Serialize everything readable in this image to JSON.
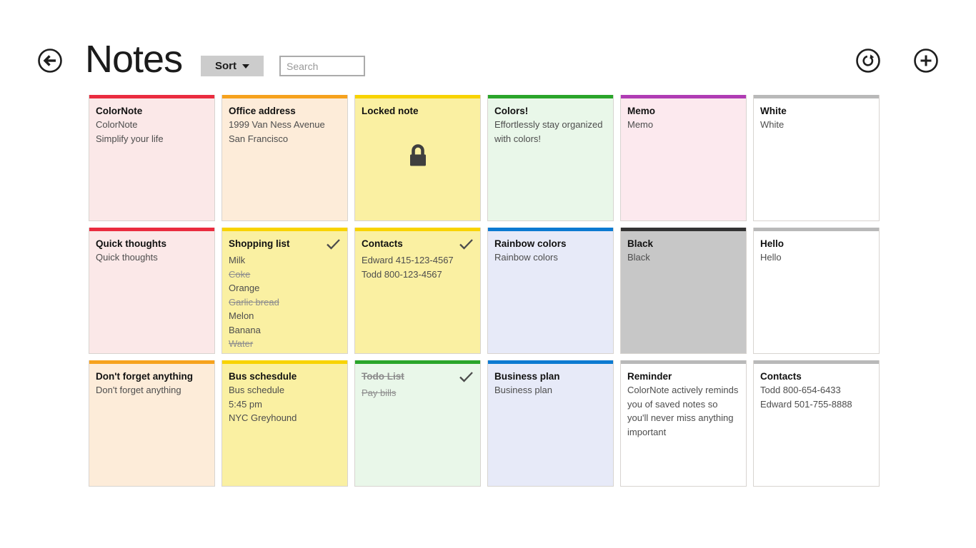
{
  "header": {
    "title": "Notes",
    "back_label": "Back",
    "sort_label": "Sort",
    "search_placeholder": "Search",
    "refresh_label": "Refresh",
    "add_label": "Add note"
  },
  "colors": {
    "bar_red": "#ea2c3f",
    "bar_orange": "#f6a21d",
    "bar_gold": "#f8d301",
    "bar_green": "#2aa52a",
    "bar_purple": "#b03cb4",
    "bar_blue": "#0c7ad1",
    "bar_gray": "#b9b9b9",
    "bar_black": "#333333",
    "icon_stroke": "#1e1e1e",
    "lock_fill": "#3f3f3f",
    "check_stroke": "#4c4c4c"
  },
  "notes": [
    {
      "title": "ColorNote",
      "bar": "#ea2c3f",
      "bg": "#fbe8e8",
      "lines": [
        {
          "text": "ColorNote"
        },
        {
          "text": "Simplify your life"
        }
      ]
    },
    {
      "title": "Office address",
      "bar": "#f6a21d",
      "bg": "#fdecd9",
      "lines": [
        {
          "text": "1999 Van Ness Avenue"
        },
        {
          "text": "San Francisco"
        }
      ]
    },
    {
      "title": "Locked note",
      "bar": "#f8d301",
      "bg": "#faf0a2",
      "lock": true,
      "lines": []
    },
    {
      "title": "Colors!",
      "bar": "#2aa52a",
      "bg": "#e9f7e9",
      "lines": [
        {
          "text": "Effortlessly stay organized with colors!"
        }
      ]
    },
    {
      "title": "Memo",
      "bar": "#b03cb4",
      "bg": "#fce9ee",
      "lines": [
        {
          "text": "Memo"
        }
      ]
    },
    {
      "title": "White",
      "bar": "#b9b9b9",
      "bg": "#ffffff",
      "lines": [
        {
          "text": "White"
        }
      ]
    },
    {
      "title": "Quick thoughts",
      "bar": "#ea2c3f",
      "bg": "#fbe8e8",
      "lines": [
        {
          "text": "Quick thoughts"
        }
      ]
    },
    {
      "title": "Shopping list",
      "bar": "#f8d301",
      "bg": "#faf0a2",
      "check": true,
      "lines": [
        {
          "text": "Milk"
        },
        {
          "text": "Coke",
          "struck": true
        },
        {
          "text": "Orange"
        },
        {
          "text": "Garlic bread",
          "struck": true
        },
        {
          "text": "Melon"
        },
        {
          "text": "Banana"
        },
        {
          "text": "Water",
          "struck": true
        }
      ]
    },
    {
      "title": "Contacts",
      "bar": "#f8d301",
      "bg": "#faf0a2",
      "check": true,
      "lines": [
        {
          "text": "Edward 415-123-4567"
        },
        {
          "text": "Todd 800-123-4567"
        }
      ]
    },
    {
      "title": "Rainbow colors",
      "bar": "#0c7ad1",
      "bg": "#e7eaf8",
      "lines": [
        {
          "text": "Rainbow colors"
        }
      ]
    },
    {
      "title": "Black",
      "bar": "#333333",
      "bg": "#c7c7c7",
      "lines": [
        {
          "text": "Black"
        }
      ]
    },
    {
      "title": "Hello",
      "bar": "#b9b9b9",
      "bg": "#ffffff",
      "lines": [
        {
          "text": "Hello"
        }
      ]
    },
    {
      "title": "Don't forget anything",
      "bar": "#f6a21d",
      "bg": "#fdecd9",
      "lines": [
        {
          "text": "Don't forget anything"
        }
      ]
    },
    {
      "title": "Bus schesdule",
      "bar": "#f8d301",
      "bg": "#faf0a2",
      "lines": [
        {
          "text": "Bus schedule"
        },
        {
          "text": "5:45 pm"
        },
        {
          "text": "NYC Greyhound"
        }
      ]
    },
    {
      "title": "Todo List",
      "bar": "#2aa52a",
      "bg": "#e9f7e9",
      "check": true,
      "title_struck": true,
      "lines": [
        {
          "text": "Pay bills",
          "struck": true
        }
      ]
    },
    {
      "title": "Business plan",
      "bar": "#0c7ad1",
      "bg": "#e7eaf8",
      "lines": [
        {
          "text": "Business plan"
        }
      ]
    },
    {
      "title": "Reminder",
      "bar": "#b9b9b9",
      "bg": "#ffffff",
      "lines": [
        {
          "text": "ColorNote actively reminds you of saved notes so you'll never miss anything important"
        }
      ]
    },
    {
      "title": "Contacts",
      "bar": "#b9b9b9",
      "bg": "#ffffff",
      "lines": [
        {
          "text": "Todd 800-654-6433"
        },
        {
          "text": "Edward 501-755-8888"
        }
      ]
    }
  ]
}
